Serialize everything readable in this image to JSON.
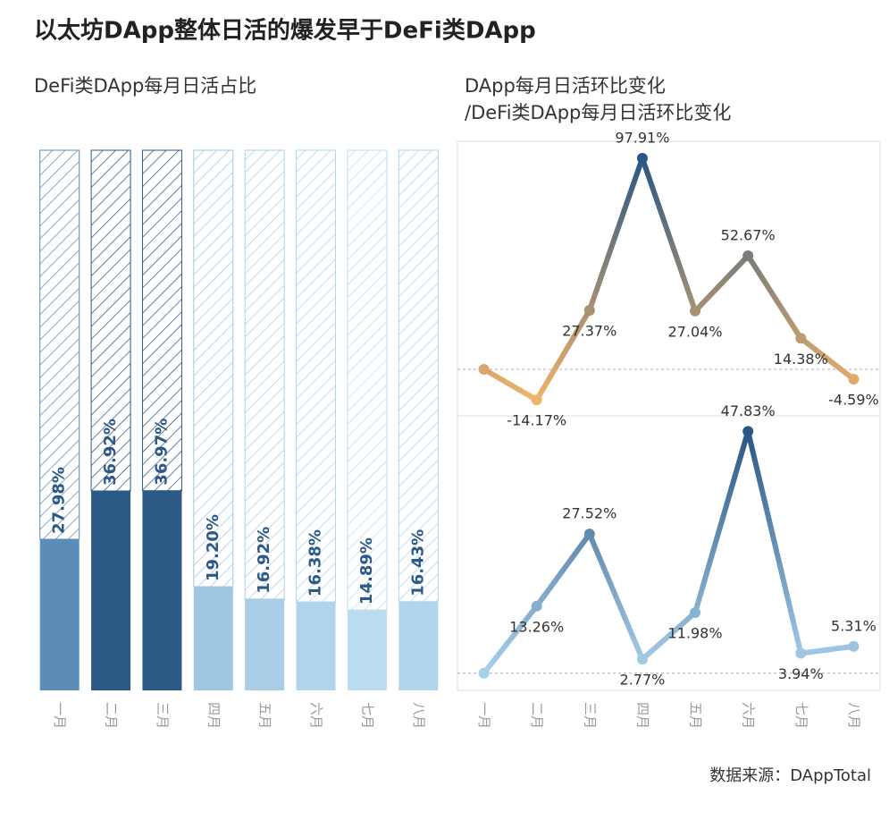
{
  "title": "以太坊DApp整体日活的爆发早于DeFi类DApp",
  "source": "数据来源：DAppTotal",
  "chart_data": [
    {
      "type": "bar",
      "title": "DeFi类DApp每月日活占比",
      "categories": [
        "一月",
        "二月",
        "三月",
        "四月",
        "五月",
        "六月",
        "七月",
        "八月"
      ],
      "values": [
        27.98,
        36.92,
        36.97,
        19.2,
        16.92,
        16.38,
        14.89,
        16.43
      ],
      "value_labels": [
        "27.98%",
        "36.92%",
        "36.97%",
        "19.20%",
        "16.92%",
        "16.38%",
        "14.89%",
        "16.43%"
      ],
      "colors": [
        "#5b8db8",
        "#2c5985",
        "#2c5985",
        "#9fc7e3",
        "#a9cfe8",
        "#b0d4ec",
        "#bcdcf0",
        "#b0d4ec"
      ],
      "label_color": "#2c5985",
      "ylim": [
        0,
        100
      ]
    },
    {
      "type": "line",
      "title": "DApp每月日活环比变化",
      "values": [
        0,
        -14.17,
        27.37,
        97.91,
        27.04,
        52.67,
        14.38,
        -4.59
      ],
      "value_labels": [
        null,
        "-14.17%",
        "27.37%",
        "97.91%",
        "27.04%",
        "52.67%",
        "14.38%",
        "-4.59%"
      ],
      "color_scale": [
        "#f0b36a",
        "#2a5783"
      ],
      "ylim": [
        -21.6,
        105.8
      ],
      "reference_line": 0
    },
    {
      "type": "line",
      "title": "/DeFi类DApp每月日活环比变化",
      "categories": [
        "一月",
        "二月",
        "三月",
        "四月",
        "五月",
        "六月",
        "七月",
        "八月"
      ],
      "values": [
        0,
        13.26,
        27.52,
        2.77,
        11.98,
        47.83,
        3.94,
        5.31
      ],
      "value_labels": [
        null,
        "13.26%",
        "27.52%",
        "2.77%",
        "11.98%",
        "47.83%",
        "3.94%",
        "5.31%"
      ],
      "color_scale": [
        "#a9d0ea",
        "#2a5783"
      ],
      "ylim": [
        -3.4,
        50.9
      ],
      "reference_line": 0
    }
  ]
}
